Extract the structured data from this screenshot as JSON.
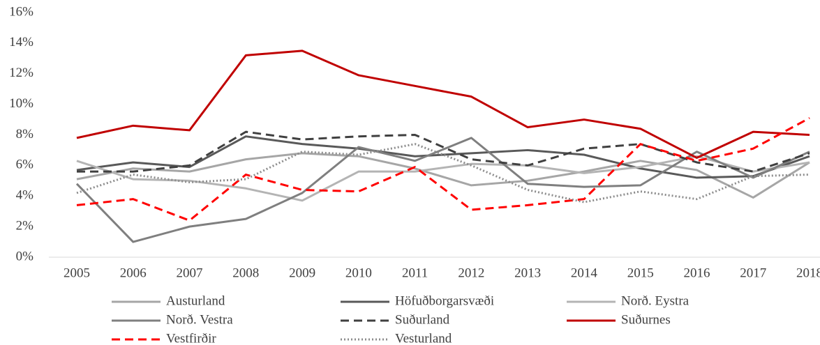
{
  "chart_data": {
    "type": "line",
    "categories": [
      "2005",
      "2006",
      "2007",
      "2008",
      "2009",
      "2010",
      "2011",
      "2012",
      "2013",
      "2014",
      "2015",
      "2016",
      "2017",
      "2018"
    ],
    "ylim": [
      0,
      16
    ],
    "yticks": [
      {
        "value": 0,
        "label": "0%"
      },
      {
        "value": 2,
        "label": "2%"
      },
      {
        "value": 4,
        "label": "4%"
      },
      {
        "value": 6,
        "label": "6%"
      },
      {
        "value": 8,
        "label": "8%"
      },
      {
        "value": 10,
        "label": "10%"
      },
      {
        "value": 12,
        "label": "12%"
      },
      {
        "value": 14,
        "label": "14%"
      },
      {
        "value": 16,
        "label": "16%"
      }
    ],
    "grid": false,
    "legend": "bottom",
    "series": [
      {
        "name": "Austurland",
        "color": "#a6a6a6",
        "dash": "solid",
        "values": [
          5.1,
          5.8,
          5.6,
          6.4,
          6.8,
          6.6,
          5.8,
          4.7,
          5.0,
          5.6,
          6.3,
          5.7,
          3.9,
          6.2
        ]
      },
      {
        "name": "Höfuðborgarsvæði",
        "color": "#595959",
        "dash": "solid",
        "values": [
          5.7,
          6.2,
          5.9,
          7.9,
          7.4,
          7.1,
          6.6,
          6.8,
          7.0,
          6.7,
          5.8,
          5.2,
          5.3,
          6.6
        ]
      },
      {
        "name": "Norð. Eystra",
        "color": "#b4b4b4",
        "dash": "solid",
        "values": [
          6.3,
          5.1,
          5.0,
          4.5,
          3.7,
          5.6,
          5.6,
          6.1,
          6.0,
          5.5,
          5.9,
          6.6,
          5.6,
          6.2
        ]
      },
      {
        "name": "Norð. Vestra",
        "color": "#7f7f7f",
        "dash": "solid",
        "values": [
          4.8,
          1.0,
          2.0,
          2.5,
          4.2,
          7.2,
          6.3,
          7.8,
          4.8,
          4.6,
          4.7,
          6.9,
          5.2,
          6.9
        ]
      },
      {
        "name": "Suðurland",
        "color": "#404040",
        "dash": "dashed",
        "values": [
          5.6,
          5.6,
          6.0,
          8.2,
          7.7,
          7.9,
          8.0,
          6.4,
          6.0,
          7.1,
          7.4,
          6.2,
          5.6,
          6.8
        ]
      },
      {
        "name": "Suðurnes",
        "color": "#c00000",
        "dash": "solid",
        "values": [
          7.8,
          8.6,
          8.3,
          13.2,
          13.5,
          11.9,
          11.2,
          10.5,
          8.5,
          9.0,
          8.4,
          6.5,
          8.2,
          8.0
        ]
      },
      {
        "name": "Vestfirðir",
        "color": "#ff0000",
        "dash": "dashed",
        "values": [
          3.4,
          3.8,
          2.4,
          5.4,
          4.4,
          4.3,
          5.9,
          3.1,
          3.4,
          3.8,
          7.4,
          6.3,
          7.1,
          9.1
        ]
      },
      {
        "name": "Vesturland",
        "color": "#8c8c8c",
        "dash": "dotted",
        "values": [
          4.2,
          5.4,
          4.9,
          5.1,
          6.9,
          6.7,
          7.4,
          6.0,
          4.4,
          3.6,
          4.3,
          3.8,
          5.3,
          5.4
        ]
      }
    ]
  }
}
